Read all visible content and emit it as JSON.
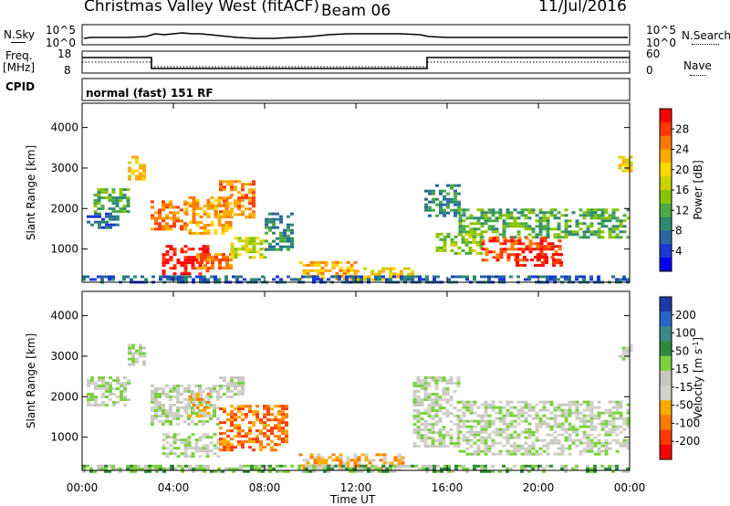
{
  "header": {
    "title": "Christmas Valley West (fitACF)",
    "beam": "Beam 06",
    "date": "11/Jul/2016"
  },
  "top_panels": {
    "nsky_label": "N.Sky",
    "nsky_ticks": [
      "10^5",
      "10^0"
    ],
    "nsearch_label": "N.Search",
    "nsearch_ticks": [
      "10^5",
      "10^0"
    ],
    "freq_label": "Freq.",
    "freq_unit": "[MHz]",
    "freq_ticks": [
      "18",
      "8"
    ],
    "nave_label": "Nave",
    "nave_ticks": [
      "60",
      "0"
    ],
    "cpid_label": "CPID",
    "cpid_text": "normal (fast) 151 RF"
  },
  "chart_data": [
    {
      "type": "heatmap",
      "name": "power-panel",
      "xlabel": "Time UT",
      "ylabel": "Slant Range [km]",
      "xticks": [
        "00:00",
        "04:00",
        "08:00",
        "12:00",
        "16:00",
        "20:00",
        "00:00"
      ],
      "yticks": [
        "1000",
        "2000",
        "3000",
        "4000"
      ],
      "xlim": [
        0,
        24
      ],
      "ylim": [
        180,
        4600
      ],
      "colorbar": {
        "label": "Power [dB]",
        "ticks": [
          "28",
          "24",
          "20",
          "16",
          "12",
          "8",
          "4"
        ],
        "colors": [
          "#ff0000",
          "#ff3a00",
          "#ff7a00",
          "#ffaa00",
          "#ffd800",
          "#c8d200",
          "#88c400",
          "#4caa44",
          "#2e8a6e",
          "#2a66a0",
          "#1838d8",
          "#0000ff"
        ]
      },
      "regions": [
        {
          "t0": 0.5,
          "t1": 2.0,
          "r0": 1900,
          "r1": 2500,
          "level": 7
        },
        {
          "t0": 0.2,
          "t1": 1.5,
          "r0": 1500,
          "r1": 1900,
          "level": 9
        },
        {
          "t0": 2.0,
          "t1": 2.8,
          "r0": 2700,
          "r1": 3300,
          "level": 4
        },
        {
          "t0": 3.0,
          "t1": 4.5,
          "r0": 1500,
          "r1": 2200,
          "level": 2
        },
        {
          "t0": 4.5,
          "t1": 6.5,
          "r0": 1400,
          "r1": 2300,
          "level": 3
        },
        {
          "t0": 6.0,
          "t1": 7.5,
          "r0": 1800,
          "r1": 2700,
          "level": 2
        },
        {
          "t0": 3.5,
          "t1": 5.5,
          "r0": 400,
          "r1": 1100,
          "level": 0
        },
        {
          "t0": 5.0,
          "t1": 6.5,
          "r0": 500,
          "r1": 900,
          "level": 2
        },
        {
          "t0": 6.5,
          "t1": 8.0,
          "r0": 800,
          "r1": 1300,
          "level": 5
        },
        {
          "t0": 8.0,
          "t1": 9.2,
          "r0": 1000,
          "r1": 1900,
          "level": 8
        },
        {
          "t0": 9.5,
          "t1": 12.0,
          "r0": 250,
          "r1": 700,
          "level": 3
        },
        {
          "t0": 12.0,
          "t1": 14.5,
          "r0": 250,
          "r1": 550,
          "level": 4
        },
        {
          "t0": 15.0,
          "t1": 16.5,
          "r0": 1800,
          "r1": 2600,
          "level": 8
        },
        {
          "t0": 16.5,
          "t1": 24.0,
          "r0": 1300,
          "r1": 2000,
          "level": 7
        },
        {
          "t0": 15.5,
          "t1": 17.5,
          "r0": 900,
          "r1": 1400,
          "level": 6
        },
        {
          "t0": 17.5,
          "t1": 21.0,
          "r0": 700,
          "r1": 1300,
          "level": 1
        },
        {
          "t0": 19.0,
          "t1": 21.0,
          "r0": 600,
          "r1": 900,
          "level": 0
        },
        {
          "t0": 23.5,
          "t1": 24.0,
          "r0": 2900,
          "r1": 3300,
          "level": 4
        },
        {
          "t0": 0.0,
          "t1": 24.0,
          "r0": 180,
          "r1": 350,
          "level": 9
        }
      ]
    },
    {
      "type": "heatmap",
      "name": "velocity-panel",
      "xlabel": "Time UT",
      "ylabel": "Slant Range [km]",
      "xticks": [
        "00:00",
        "04:00",
        "08:00",
        "12:00",
        "16:00",
        "20:00",
        "00:00"
      ],
      "yticks": [
        "1000",
        "2000",
        "3000",
        "4000"
      ],
      "xlim": [
        0,
        24
      ],
      "ylim": [
        180,
        4600
      ],
      "colorbar": {
        "label": "Velocity [m s",
        "label_sup": "-1",
        "label_end": "]",
        "ticks": [
          "200",
          "100",
          "50",
          "15",
          "-15",
          "-50",
          "-100",
          "-200"
        ],
        "colors": [
          "#1d3aa8",
          "#2a64c8",
          "#3a8a8a",
          "#2e8a3c",
          "#7ad13c",
          "#c8c8c0",
          "#d2d2ca",
          "#ffaa00",
          "#ff7a00",
          "#ff3a00",
          "#ff0000"
        ]
      },
      "regions": [
        {
          "t0": 0.2,
          "t1": 2.0,
          "r0": 1800,
          "r1": 2500,
          "level": 5
        },
        {
          "t0": 2.0,
          "t1": 2.8,
          "r0": 2700,
          "r1": 3300,
          "level": 5
        },
        {
          "t0": 3.0,
          "t1": 6.0,
          "r0": 1300,
          "r1": 2300,
          "level": 5
        },
        {
          "t0": 4.5,
          "t1": 5.5,
          "r0": 1500,
          "r1": 2100,
          "level": 7
        },
        {
          "t0": 6.0,
          "t1": 7.0,
          "r0": 2000,
          "r1": 2500,
          "level": 5
        },
        {
          "t0": 3.5,
          "t1": 6.0,
          "r0": 500,
          "r1": 1100,
          "level": 5
        },
        {
          "t0": 6.0,
          "t1": 9.0,
          "r0": 700,
          "r1": 1800,
          "level": 8
        },
        {
          "t0": 9.5,
          "t1": 14.0,
          "r0": 250,
          "r1": 600,
          "level": 7
        },
        {
          "t0": 14.5,
          "t1": 16.5,
          "r0": 800,
          "r1": 2500,
          "level": 5
        },
        {
          "t0": 16.5,
          "t1": 24.0,
          "r0": 600,
          "r1": 1900,
          "level": 5
        },
        {
          "t0": 23.5,
          "t1": 24.0,
          "r0": 2900,
          "r1": 3300,
          "level": 5
        },
        {
          "t0": 0.0,
          "t1": 24.0,
          "r0": 180,
          "r1": 320,
          "level": 4
        }
      ]
    }
  ]
}
